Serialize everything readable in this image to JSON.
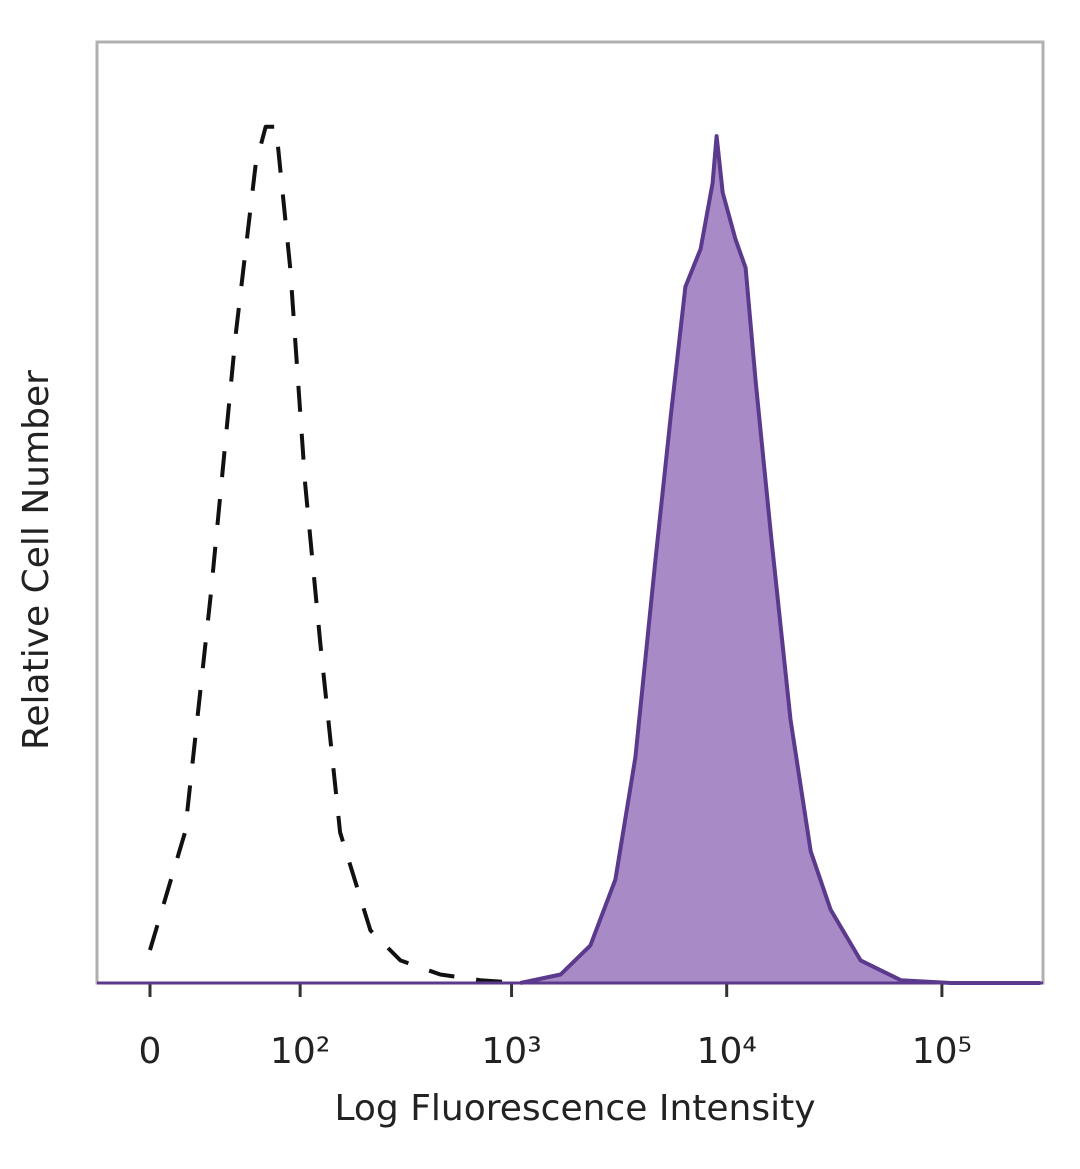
{
  "chart_data": {
    "type": "histogram-overlay",
    "xlabel": "Log Fluorescence Intensity",
    "ylabel": "Relative Cell Number",
    "xscale": "biexponential",
    "xlim": [
      -25,
      295000
    ],
    "ylim": [
      0,
      100
    ],
    "xticks": [
      0,
      {
        "value": 100,
        "label": "10²"
      },
      {
        "value": 1000,
        "label": "10³"
      },
      {
        "value": 10000,
        "label": "10⁴"
      },
      {
        "value": 100000,
        "label": "10⁵"
      }
    ],
    "series": [
      {
        "color": "#111111",
        "dashed": true,
        "filled": false,
        "x": [
          0,
          16,
          29,
          44,
          58,
          66,
          75,
          89,
          106,
          126,
          157,
          219,
          303,
          466,
          715,
          1100
        ],
        "values": [
          3.5,
          16,
          41,
          69,
          87,
          91,
          91,
          76,
          53,
          36,
          16,
          5.6,
          2.4,
          0.9,
          0.3,
          0
        ]
      },
      {
        "color": "#5b3a8e",
        "fill": "#a88bc6",
        "dashed": false,
        "filled": true,
        "x": [
          1100,
          1690,
          2325,
          3040,
          3765,
          4670,
          5480,
          6430,
          7560,
          8600,
          8980,
          9580,
          11000,
          12240,
          13630,
          16000,
          19800,
          24570,
          30400,
          41900,
          64400,
          110000,
          287000
        ],
        "values": [
          0,
          0.9,
          4,
          11,
          24,
          45,
          60,
          74,
          78,
          85,
          90,
          84,
          79,
          76,
          64,
          48,
          28,
          14,
          7.8,
          2.4,
          0.3,
          0,
          0
        ]
      }
    ]
  }
}
